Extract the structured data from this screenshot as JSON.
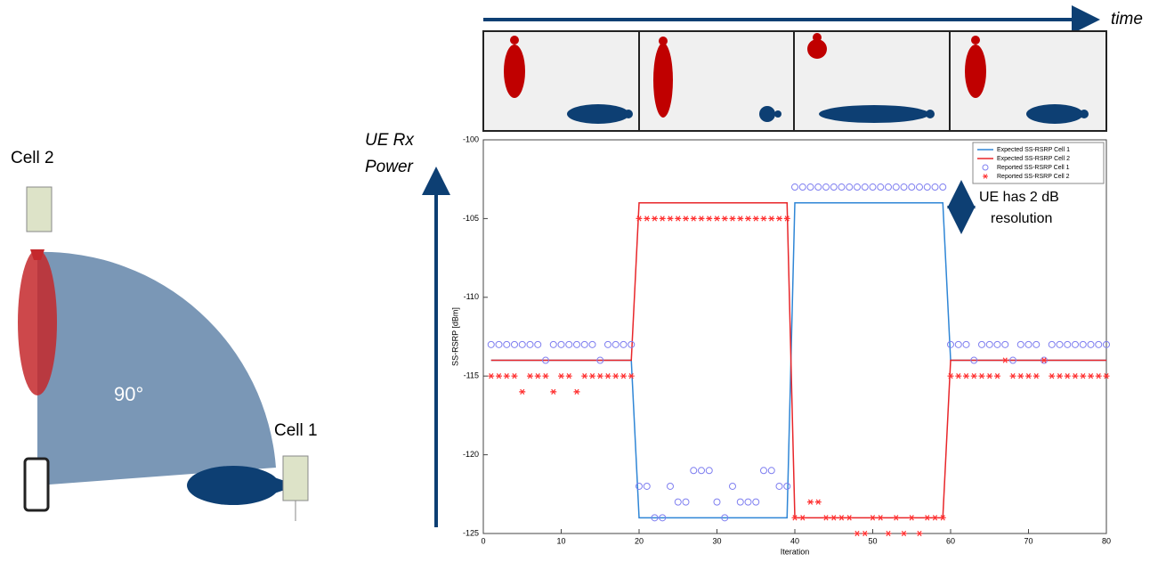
{
  "figure": {
    "cell2_label": "Cell 2",
    "cell1_label": "Cell 1",
    "angle_label": "90°",
    "power_axis_label": [
      "UE Rx",
      "Power"
    ],
    "time_label": "time",
    "resolution_note": [
      "UE has 2 dB",
      "resolution"
    ]
  },
  "chart_data": {
    "type": "line",
    "xlabel": "Iteration",
    "ylabel": "SS-RSRP [dBm]",
    "xlim": [
      0,
      80
    ],
    "xticks": [
      0,
      10,
      20,
      30,
      40,
      50,
      60,
      70,
      80
    ],
    "ylim": [
      -125,
      -100
    ],
    "yticks": [
      -125,
      -120,
      -115,
      -110,
      -105,
      -100
    ],
    "grid": false,
    "legend": "top-right",
    "x": [
      1,
      2,
      3,
      4,
      5,
      6,
      7,
      8,
      9,
      10,
      11,
      12,
      13,
      14,
      15,
      16,
      17,
      18,
      19,
      20,
      21,
      22,
      23,
      24,
      25,
      26,
      27,
      28,
      29,
      30,
      31,
      32,
      33,
      34,
      35,
      36,
      37,
      38,
      39,
      40,
      41,
      42,
      43,
      44,
      45,
      46,
      47,
      48,
      49,
      50,
      51,
      52,
      53,
      54,
      55,
      56,
      57,
      58,
      59,
      60,
      61,
      62,
      63,
      64,
      65,
      66,
      67,
      68,
      69,
      70,
      71,
      72,
      73,
      74,
      75,
      76,
      77,
      78,
      79,
      80
    ],
    "series": [
      {
        "name": "Expected SS-RSRP Cell 1",
        "color": "#2f86d6",
        "mode": "line",
        "values": [
          -114,
          -114,
          -114,
          -114,
          -114,
          -114,
          -114,
          -114,
          -114,
          -114,
          -114,
          -114,
          -114,
          -114,
          -114,
          -114,
          -114,
          -114,
          -114,
          -124,
          -124,
          -124,
          -124,
          -124,
          -124,
          -124,
          -124,
          -124,
          -124,
          -124,
          -124,
          -124,
          -124,
          -124,
          -124,
          -124,
          -124,
          -124,
          -124,
          -104,
          -104,
          -104,
          -104,
          -104,
          -104,
          -104,
          -104,
          -104,
          -104,
          -104,
          -104,
          -104,
          -104,
          -104,
          -104,
          -104,
          -104,
          -104,
          -104,
          -114,
          -114,
          -114,
          -114,
          -114,
          -114,
          -114,
          -114,
          -114,
          -114,
          -114,
          -114,
          -114,
          -114,
          -114,
          -114,
          -114,
          -114,
          -114,
          -114,
          -114
        ]
      },
      {
        "name": "Expected SS-RSRP Cell 2",
        "color": "#e8262a",
        "mode": "line",
        "values": [
          -114,
          -114,
          -114,
          -114,
          -114,
          -114,
          -114,
          -114,
          -114,
          -114,
          -114,
          -114,
          -114,
          -114,
          -114,
          -114,
          -114,
          -114,
          -114,
          -104,
          -104,
          -104,
          -104,
          -104,
          -104,
          -104,
          -104,
          -104,
          -104,
          -104,
          -104,
          -104,
          -104,
          -104,
          -104,
          -104,
          -104,
          -104,
          -104,
          -124,
          -124,
          -124,
          -124,
          -124,
          -124,
          -124,
          -124,
          -124,
          -124,
          -124,
          -124,
          -124,
          -124,
          -124,
          -124,
          -124,
          -124,
          -124,
          -124,
          -114,
          -114,
          -114,
          -114,
          -114,
          -114,
          -114,
          -114,
          -114,
          -114,
          -114,
          -114,
          -114,
          -114,
          -114,
          -114,
          -114,
          -114,
          -114,
          -114,
          -114
        ]
      },
      {
        "name": "Reported SS-RSRP Cell 1",
        "color": "#7f7ff0",
        "mode": "circle",
        "values": [
          -113,
          -113,
          -113,
          -113,
          -113,
          -113,
          -113,
          -114,
          -113,
          -113,
          -113,
          -113,
          -113,
          -113,
          -114,
          -113,
          -113,
          -113,
          -113,
          -122,
          -122,
          -124,
          -124,
          -122,
          -123,
          -123,
          -121,
          -121,
          -121,
          -123,
          -124,
          -122,
          -123,
          -123,
          -123,
          -121,
          -121,
          -122,
          -122,
          -103,
          -103,
          -103,
          -103,
          -103,
          -103,
          -103,
          -103,
          -103,
          -103,
          -103,
          -103,
          -103,
          -103,
          -103,
          -103,
          -103,
          -103,
          -103,
          -103,
          -113,
          -113,
          -113,
          -114,
          -113,
          -113,
          -113,
          -113,
          -114,
          -113,
          -113,
          -113,
          -114,
          -113,
          -113,
          -113,
          -113,
          -113,
          -113,
          -113,
          -113
        ]
      },
      {
        "name": "Reported SS-RSRP Cell 2",
        "color": "#ff3030",
        "mode": "asterisk",
        "values": [
          -115,
          -115,
          -115,
          -115,
          -116,
          -115,
          -115,
          -115,
          -116,
          -115,
          -115,
          -116,
          -115,
          -115,
          -115,
          -115,
          -115,
          -115,
          -115,
          -105,
          -105,
          -105,
          -105,
          -105,
          -105,
          -105,
          -105,
          -105,
          -105,
          -105,
          -105,
          -105,
          -105,
          -105,
          -105,
          -105,
          -105,
          -105,
          -105,
          -124,
          -124,
          -123,
          -123,
          -124,
          -124,
          -124,
          -124,
          -125,
          -125,
          -124,
          -124,
          -125,
          -124,
          -125,
          -124,
          -125,
          -124,
          -124,
          -124,
          -115,
          -115,
          -115,
          -115,
          -115,
          -115,
          -115,
          -114,
          -115,
          -115,
          -115,
          -115,
          -114,
          -115,
          -115,
          -115,
          -115,
          -115,
          -115,
          -115,
          -115
        ]
      }
    ]
  }
}
